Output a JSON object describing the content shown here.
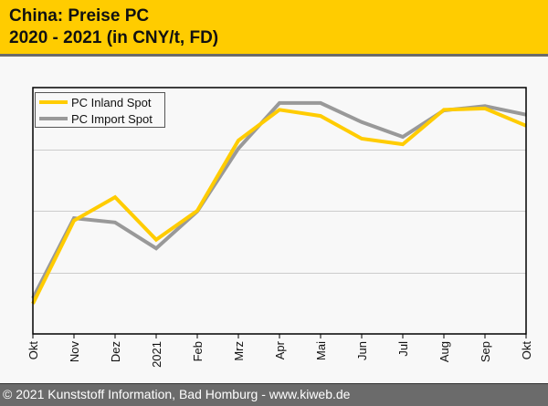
{
  "header": {
    "title_line1": "China: Preise PC",
    "title_line2": "2020 - 2021 (in CNY/t, FD)"
  },
  "footer": {
    "text": "© 2021 Kunststoff Information, Bad Homburg - www.kiweb.de"
  },
  "colors": {
    "header_bg": "#ffcc00",
    "inland": "#ffcc00",
    "import": "#999999",
    "footer_bg": "#6b6b6b"
  },
  "chart_data": {
    "type": "line",
    "title": "China: Preise PC 2020 - 2021 (in CNY/t, FD)",
    "xlabel": "",
    "ylabel": "",
    "y_units_note": "No y-axis tick values shown; values are relative, in gridline bands (0 = axis bottom, 4 = plot top)",
    "ylim": [
      0,
      4
    ],
    "gridlines": [
      1,
      2,
      3
    ],
    "grid": true,
    "legend_position": "top-left",
    "categories": [
      "Okt",
      "Nov",
      "Dez",
      "2021",
      "Feb",
      "Mrz",
      "Apr",
      "Mai",
      "Jun",
      "Jul",
      "Aug",
      "Sep",
      "Okt"
    ],
    "series": [
      {
        "name": "PC Inland Spot",
        "color": "#ffcc00",
        "values": [
          0.49,
          1.84,
          2.22,
          1.53,
          2.0,
          3.14,
          3.64,
          3.54,
          3.17,
          3.08,
          3.64,
          3.66,
          3.38
        ]
      },
      {
        "name": "PC Import Spot",
        "color": "#999999",
        "values": [
          0.58,
          1.88,
          1.81,
          1.39,
          1.99,
          3.01,
          3.75,
          3.75,
          3.44,
          3.2,
          3.63,
          3.7,
          3.56
        ]
      }
    ]
  }
}
